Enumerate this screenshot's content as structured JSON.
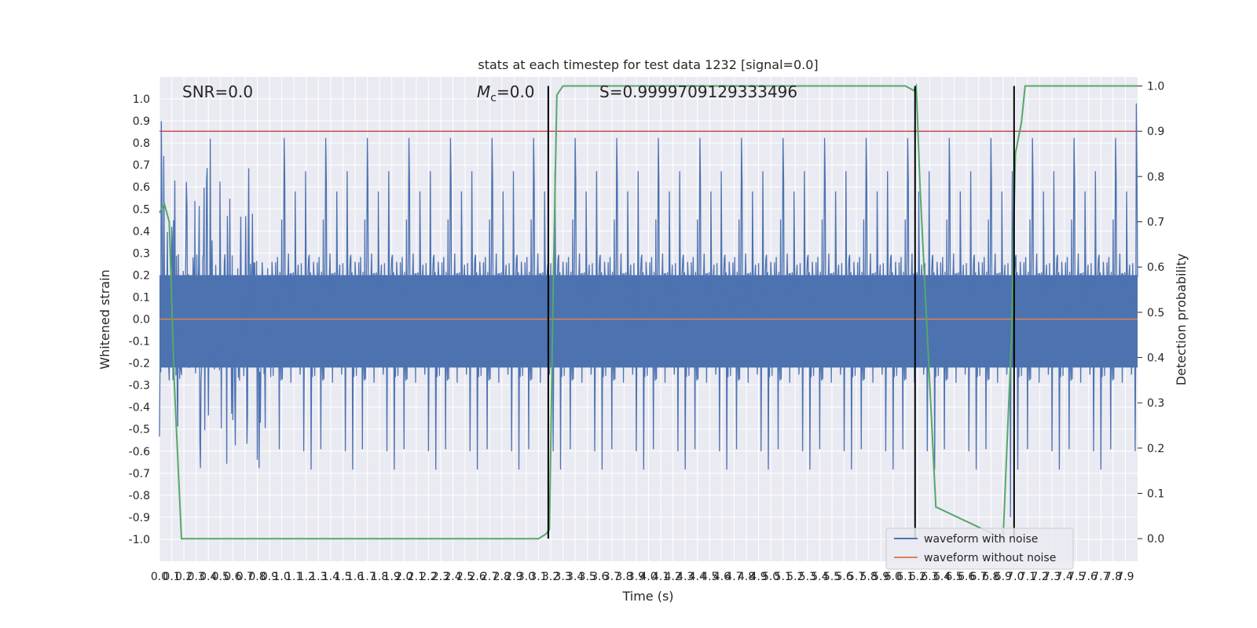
{
  "chart_data": {
    "type": "line",
    "title": "stats at each timestep for test data 1232 [signal=0.0]",
    "xlabel": "Time (s)",
    "ylabel": "Whitened strain",
    "y2label": "Detection probability",
    "xlim": [
      0.0,
      8.0
    ],
    "ylim": [
      -1.1,
      1.1
    ],
    "y2lim": [
      -0.05,
      1.02
    ],
    "x_ticks": [
      0.0,
      0.1,
      0.2,
      0.3,
      0.4,
      0.5,
      0.6,
      0.7,
      0.8,
      0.9,
      1.0,
      1.1,
      1.2,
      1.3,
      1.4,
      1.5,
      1.6,
      1.7,
      1.8,
      1.9,
      2.0,
      2.1,
      2.2,
      2.3,
      2.4,
      2.5,
      2.6,
      2.7,
      2.8,
      2.9,
      3.0,
      3.1,
      3.2,
      3.3,
      3.4,
      3.5,
      3.6,
      3.7,
      3.8,
      3.9,
      4.0,
      4.1,
      4.2,
      4.3,
      4.4,
      4.5,
      4.6,
      4.7,
      4.8,
      4.9,
      5.0,
      5.1,
      5.2,
      5.3,
      5.4,
      5.5,
      5.6,
      5.7,
      5.8,
      5.9,
      6.0,
      6.1,
      6.2,
      6.3,
      6.4,
      6.5,
      6.6,
      6.7,
      6.8,
      6.9,
      7.0,
      7.1,
      7.2,
      7.3,
      7.4,
      7.5,
      7.6,
      7.7,
      7.8,
      7.9
    ],
    "y_ticks": [
      -1.0,
      -0.9,
      -0.8,
      -0.7,
      -0.6,
      -0.5,
      -0.4,
      -0.3,
      -0.2,
      -0.1,
      0.0,
      0.1,
      0.2,
      0.3,
      0.4,
      0.5,
      0.6,
      0.7,
      0.8,
      0.9,
      1.0
    ],
    "y2_ticks": [
      0.0,
      0.1,
      0.2,
      0.3,
      0.4,
      0.5,
      0.6,
      0.7,
      0.8,
      0.9,
      1.0
    ],
    "grid": true,
    "legend_position": "bottom-right",
    "annotations": {
      "snr": "SNR=0.0",
      "mc_symbol": "M",
      "mc_sub": "c",
      "mc_value": "=0.0",
      "s": "S=0.9999709129333496"
    },
    "threshold": {
      "value": 0.9,
      "axis": "y2",
      "color": "#c44e52"
    },
    "event_lines_x": [
      3.18,
      6.18,
      6.99
    ],
    "series": [
      {
        "name": "waveform with noise",
        "color": "#4c72b0",
        "axis": "y",
        "noise_envelope": 0.3,
        "peak_max": 0.98,
        "peak_min": -0.9
      },
      {
        "name": "waveform without noise",
        "color": "#dd8452",
        "axis": "y",
        "x": [
          0.0,
          8.0
        ],
        "y": [
          0.0,
          0.0
        ]
      },
      {
        "name": "detection probability",
        "color": "#55a868",
        "axis": "y2",
        "x": [
          0.0,
          0.04,
          0.08,
          0.12,
          0.18,
          0.25,
          3.1,
          3.16,
          3.19,
          3.22,
          3.25,
          3.3,
          6.1,
          6.17,
          6.19,
          6.22,
          6.35,
          6.9,
          6.97,
          7.0,
          7.05,
          7.08,
          7.9,
          8.0
        ],
        "y": [
          0.72,
          0.74,
          0.7,
          0.35,
          0.0,
          0.0,
          0.0,
          0.01,
          0.02,
          0.55,
          0.98,
          1.0,
          1.0,
          0.99,
          1.0,
          0.78,
          0.07,
          0.0,
          0.45,
          0.85,
          0.92,
          1.0,
          1.0,
          1.0
        ]
      }
    ]
  }
}
